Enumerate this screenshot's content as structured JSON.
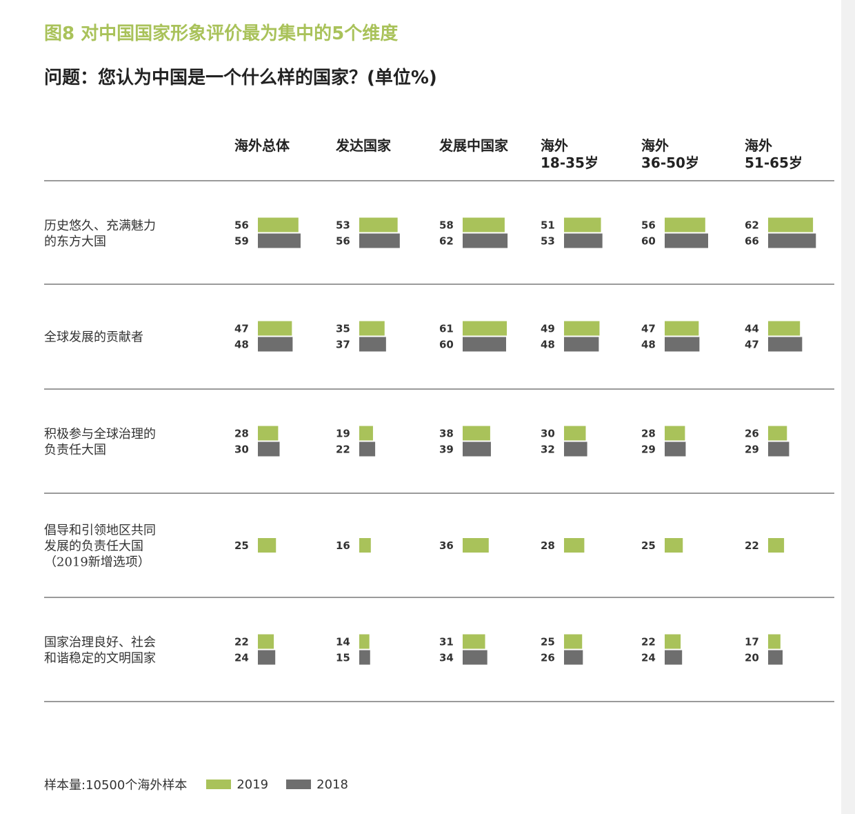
{
  "title": "图8 对中国国家形象评价最为集中的5个维度",
  "subtitle": "问题：您认为中国是一个什么样的国家？(单位%)",
  "legend": {
    "note": "样本量:10500个海外样本",
    "items": [
      {
        "label": "2019",
        "color": "#a9c25a"
      },
      {
        "label": "2018",
        "color": "#6e6e6e"
      }
    ]
  },
  "chart_data": {
    "type": "bar",
    "columns": [
      {
        "label": [
          "海外总体"
        ]
      },
      {
        "label": [
          "发达国家"
        ]
      },
      {
        "label": [
          "发展中国家"
        ]
      },
      {
        "label": [
          "海外",
          "18-35岁"
        ]
      },
      {
        "label": [
          "海外",
          "36-50岁"
        ]
      },
      {
        "label": [
          "海外",
          "51-65岁"
        ]
      }
    ],
    "rows": [
      {
        "label": [
          "历史悠久、充满魅力",
          "的东方大国"
        ],
        "v2019": [
          56,
          53,
          58,
          51,
          56,
          62
        ],
        "v2018": [
          59,
          56,
          62,
          53,
          60,
          66
        ]
      },
      {
        "label": [
          "全球发展的贡献者"
        ],
        "v2019": [
          47,
          35,
          61,
          49,
          47,
          44
        ],
        "v2018": [
          48,
          37,
          60,
          48,
          48,
          47
        ]
      },
      {
        "label": [
          "积极参与全球治理的",
          "负责任大国"
        ],
        "v2019": [
          28,
          19,
          38,
          30,
          28,
          26
        ],
        "v2018": [
          30,
          22,
          39,
          32,
          29,
          29
        ]
      },
      {
        "label": [
          "倡导和引领地区共同",
          "发展的负责任大国",
          "（2019新增选项）"
        ],
        "v2019": [
          25,
          16,
          36,
          28,
          25,
          22
        ],
        "v2018": [
          null,
          null,
          null,
          null,
          null,
          null
        ]
      },
      {
        "label": [
          "国家治理良好、社会",
          "和谐稳定的文明国家"
        ],
        "v2019": [
          22,
          14,
          31,
          25,
          22,
          17
        ],
        "v2018": [
          24,
          15,
          34,
          26,
          24,
          20
        ]
      }
    ],
    "series": [
      {
        "name": "2019",
        "color": "#a9c25a"
      },
      {
        "name": "2018",
        "color": "#6e6e6e"
      }
    ]
  }
}
